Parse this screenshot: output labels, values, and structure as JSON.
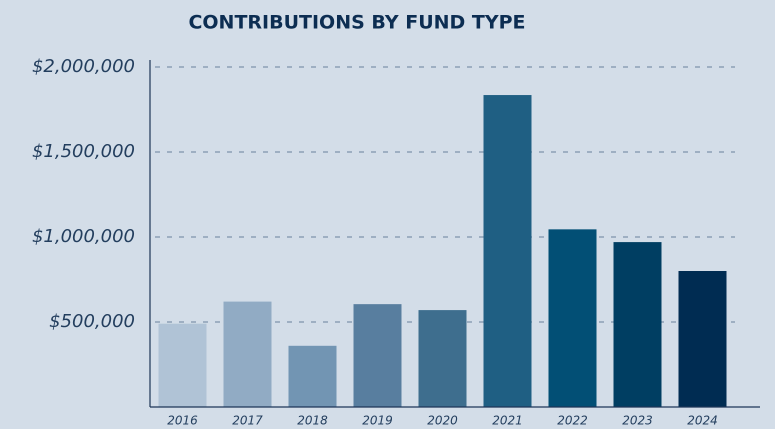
{
  "chart_data": {
    "type": "bar",
    "title": "CONTRIBUTIONS BY FUND TYPE",
    "categories": [
      "2016",
      "2017",
      "2018",
      "2019",
      "2020",
      "2021",
      "2022",
      "2023",
      "2024"
    ],
    "values": [
      490000,
      620000,
      360000,
      605000,
      570000,
      1835000,
      1045000,
      970000,
      800000
    ],
    "colors": [
      "#b0c3d6",
      "#91abc4",
      "#7295b3",
      "#587e9f",
      "#3e6e8e",
      "#1f5f83",
      "#024f75",
      "#003e62",
      "#002c52"
    ],
    "ylim": [
      0,
      2000000
    ],
    "yticks": [
      {
        "value": 500000,
        "label": "$500,000"
      },
      {
        "value": 1000000,
        "label": "$1,000,000"
      },
      {
        "value": 1500000,
        "label": "$1,500,000"
      },
      {
        "value": 2000000,
        "label": "$2,000,000"
      }
    ],
    "grid": true
  }
}
